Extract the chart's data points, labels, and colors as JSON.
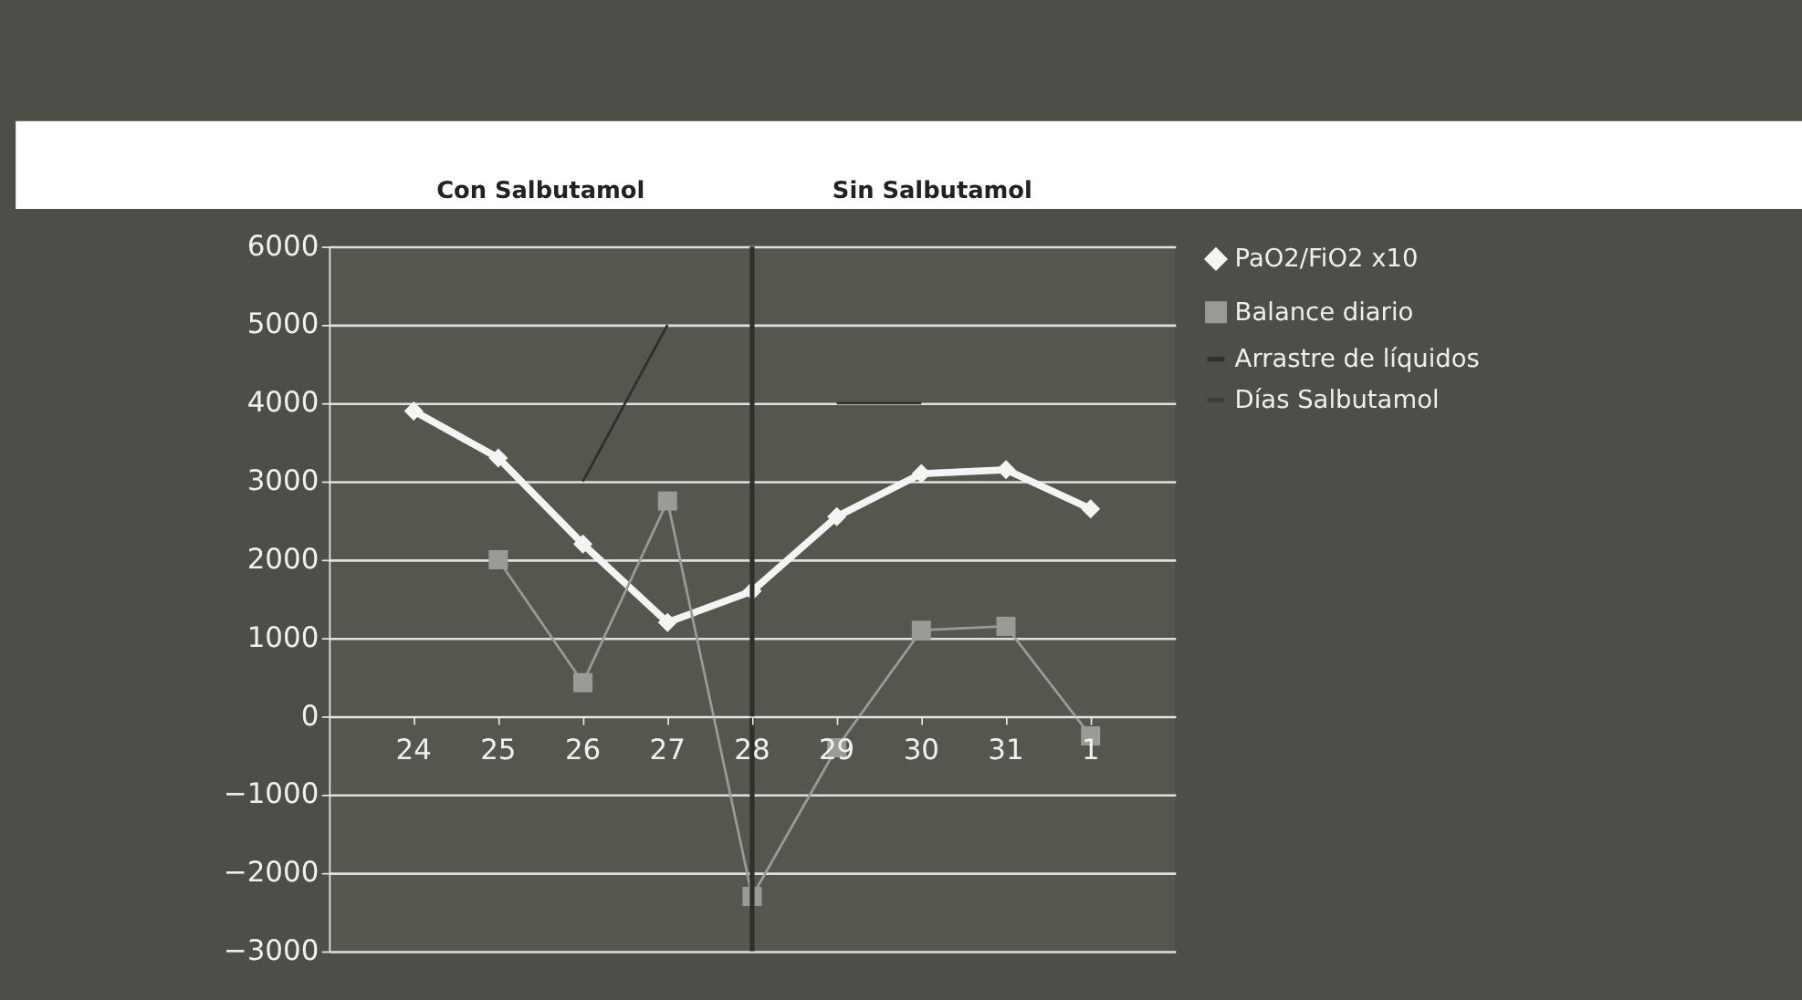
{
  "chart_data": {
    "type": "line",
    "categories": [
      "24",
      "25",
      "26",
      "27",
      "28",
      "29",
      "30",
      "31",
      "1"
    ],
    "series": [
      {
        "name": "PaO2/FiO2 x10",
        "color": "#f4f4f4",
        "marker": "diamond",
        "values": [
          3900,
          3300,
          2200,
          1200,
          1600,
          2550,
          3100,
          3150,
          2650
        ]
      },
      {
        "name": "Balance diario",
        "color": "#9a9a96",
        "marker": "square",
        "values": [
          null,
          2000,
          430,
          2750,
          -2300,
          -400,
          1100,
          1150,
          -250
        ]
      },
      {
        "name": "Arrastre de líquidos",
        "color": "#2f2f2b",
        "marker": "none",
        "values": [
          null,
          null,
          3000,
          5000,
          null,
          4000,
          4000,
          null,
          null
        ]
      },
      {
        "name": "Días Salbutamol",
        "color": "#3c3c38",
        "marker": "none",
        "values": [
          null,
          null,
          null,
          null,
          null,
          null,
          null,
          null,
          null
        ]
      }
    ],
    "ylim": [
      -3000,
      6000
    ],
    "yticks": [
      -3000,
      -2000,
      -1000,
      0,
      1000,
      2000,
      3000,
      4000,
      5000,
      6000
    ],
    "grid": "y",
    "legend": "right",
    "ref_lines": [
      {
        "axis": "x",
        "value": "28",
        "color": "#2e2e2b"
      }
    ],
    "annotations": [
      "Con Salbutamol",
      "Sin Salbutamol"
    ]
  }
}
